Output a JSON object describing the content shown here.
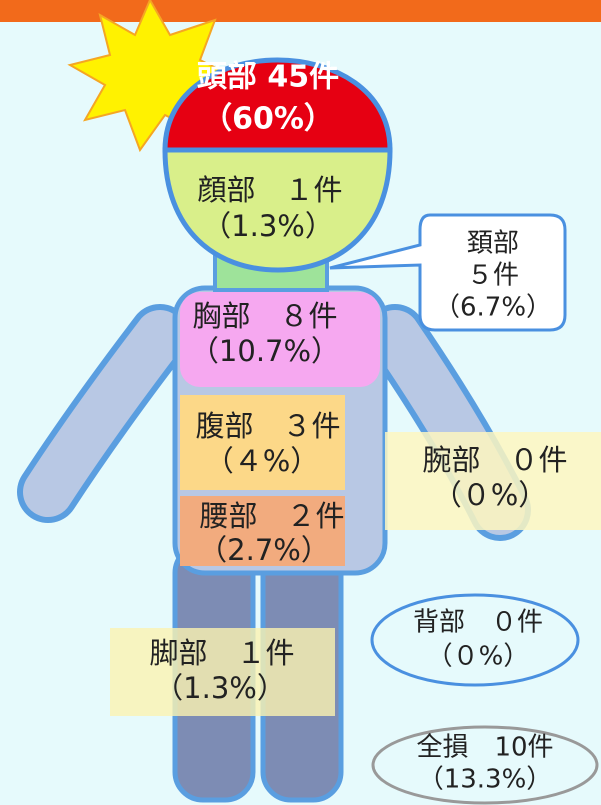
{
  "head": {
    "label": "頭部 45件",
    "share": "（60%）"
  },
  "face": {
    "label": "顔部　１件",
    "share": "（1.3%）"
  },
  "neck": {
    "name": "頚部",
    "label": "５件",
    "share": "（6.7%）"
  },
  "chest": {
    "label": "胸部　８件",
    "share": "（10.7%）"
  },
  "abdomen": {
    "label": "腹部　３件",
    "share": "（４%）"
  },
  "waist": {
    "label": "腰部　２件",
    "share": "（2.7%）"
  },
  "arm": {
    "label": "腕部　０件",
    "share": "（０%）"
  },
  "leg": {
    "label": "脚部　１件",
    "share": "（1.3%）"
  },
  "back": {
    "label": "背部　０件",
    "share": "（０%）"
  },
  "total": {
    "label": "全損　10件",
    "share": "（13.3%）"
  }
}
